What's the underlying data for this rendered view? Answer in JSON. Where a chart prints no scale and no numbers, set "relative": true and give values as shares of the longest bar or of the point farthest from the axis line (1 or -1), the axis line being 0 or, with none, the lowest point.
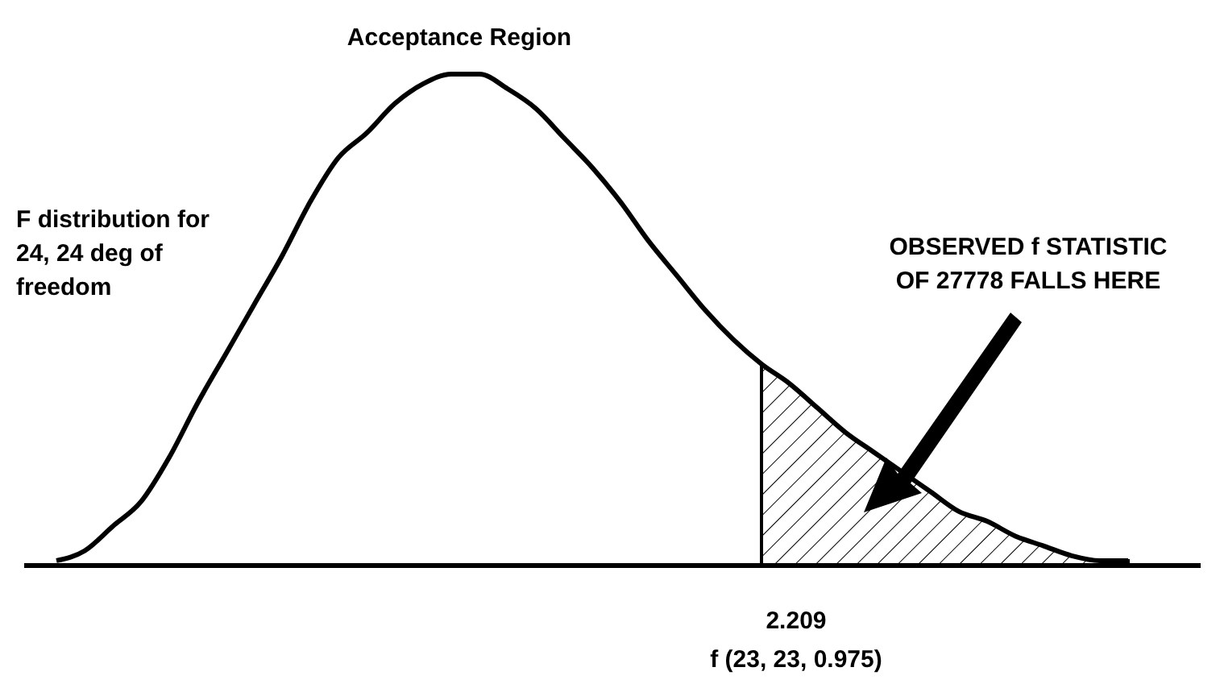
{
  "chart_data": {
    "type": "line",
    "relative": true,
    "marker": "none",
    "line_style": "solid",
    "grid": false,
    "categories": [
      null,
      null,
      null,
      null,
      null,
      null,
      null,
      null,
      null,
      null,
      null,
      null,
      null,
      null,
      null,
      null,
      null,
      null,
      null,
      null,
      null,
      null,
      null,
      null,
      null,
      null,
      null,
      null,
      null,
      null,
      null,
      null,
      null,
      null,
      null,
      null,
      null,
      null,
      null
    ],
    "series": [
      {
        "color": "#000000",
        "values": [
          0.01,
          0.03,
          0.08,
          0.13,
          0.22,
          0.33,
          0.43,
          0.53,
          0.63,
          0.74,
          0.83,
          0.88,
          0.94,
          0.98,
          1.0,
          1.0,
          0.97,
          0.93,
          0.87,
          0.81,
          0.74,
          0.66,
          0.59,
          0.52,
          0.46,
          0.41,
          0.37,
          0.32,
          0.27,
          0.23,
          0.19,
          0.15,
          0.11,
          0.09,
          0.06,
          0.04,
          0.02,
          0.01,
          0.01
        ]
      },
      {
        "type": "area",
        "color": "#000000",
        "values": [
          null,
          null,
          null,
          null,
          null,
          null,
          null,
          null,
          null,
          null,
          null,
          null,
          null,
          null,
          null,
          null,
          null,
          null,
          null,
          null,
          null,
          null,
          null,
          null,
          null,
          0.41,
          0.37,
          0.32,
          0.27,
          0.23,
          0.19,
          0.15,
          0.11,
          0.09,
          0.06,
          0.04,
          0.02,
          0.01,
          0.01
        ]
      }
    ],
    "annotations": [
      "Acceptance Region",
      "F distribution for\n24,  24 deg of\nfreedom",
      "OBSERVED f STATISTIC\nOF 27778 FALLS HERE",
      "2.209",
      "f (23, 23, 0.975)"
    ]
  }
}
